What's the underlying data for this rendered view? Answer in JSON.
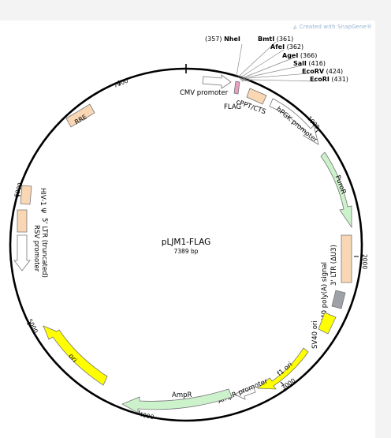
{
  "watermark": "Created with SnapGene®",
  "plasmid": {
    "name": "pLJM1-FLAG",
    "size_label": "7389 bp",
    "length": 7389
  },
  "ticks": [
    {
      "label": "1000",
      "pos": 1000
    },
    {
      "label": "2000",
      "pos": 2000
    },
    {
      "label": "3000",
      "pos": 3000
    },
    {
      "label": "4000",
      "pos": 4000
    },
    {
      "label": "5000",
      "pos": 5000
    },
    {
      "label": "6000",
      "pos": 6000
    },
    {
      "label": "7000",
      "pos": 7000
    }
  ],
  "sites": [
    {
      "name": "NheI",
      "pos": 357,
      "prefix": "(357) ",
      "suffix": ""
    },
    {
      "name": "BmtI",
      "pos": 361,
      "prefix": "",
      "suffix": " (361)"
    },
    {
      "name": "AfeI",
      "pos": 362,
      "prefix": "",
      "suffix": " (362)"
    },
    {
      "name": "AgeI",
      "pos": 366,
      "prefix": "",
      "suffix": " (366)"
    },
    {
      "name": "SalI",
      "pos": 416,
      "prefix": "",
      "suffix": " (416)"
    },
    {
      "name": "EcoRV",
      "pos": 424,
      "prefix": "",
      "suffix": " (424)"
    },
    {
      "name": "EcoRI",
      "pos": 431,
      "prefix": "",
      "suffix": " (431)"
    }
  ],
  "features": [
    {
      "id": "cmv",
      "label": "CMV promoter",
      "color": "#ffffff",
      "type": "arrow"
    },
    {
      "id": "flag",
      "label": "FLAG",
      "color": "#e7a0c0",
      "type": "block"
    },
    {
      "id": "cppt",
      "label": "cPPT/CTS",
      "color": "#f9d7b5",
      "type": "block"
    },
    {
      "id": "hpgk",
      "label": "hPGK promoter",
      "color": "#ffffff",
      "type": "arrow"
    },
    {
      "id": "puror",
      "label": "PuroR",
      "color": "#ccf2cc",
      "type": "arrow"
    },
    {
      "id": "ltr3",
      "label": "3' LTR (ΔU3)",
      "color": "#f9d7b5",
      "type": "block"
    },
    {
      "id": "sv40pa",
      "label": "SV40 poly(A) signal",
      "color": "#9ea1a6",
      "type": "block"
    },
    {
      "id": "sv40ori",
      "label": "SV40 ori",
      "color": "#ffff00",
      "type": "block"
    },
    {
      "id": "f1ori",
      "label": "f1 ori",
      "color": "#ffff00",
      "type": "arrow"
    },
    {
      "id": "ampprom",
      "label": "AmpR promoter",
      "color": "#ffffff",
      "type": "arrow"
    },
    {
      "id": "ampr",
      "label": "AmpR",
      "color": "#ccf2cc",
      "type": "arrow"
    },
    {
      "id": "ori",
      "label": "ori",
      "color": "#ffff00",
      "type": "arrow"
    },
    {
      "id": "rsv",
      "label": "RSV promoter",
      "color": "#ffffff",
      "type": "arrow"
    },
    {
      "id": "ltr5",
      "label": "5' LTR (truncated)",
      "color": "#f9d7b5",
      "type": "block"
    },
    {
      "id": "hiv",
      "label": "HIV-1 Ψ",
      "color": "#f9d7b5",
      "type": "block"
    },
    {
      "id": "rre",
      "label": "RRE",
      "color": "#f9d7b5",
      "type": "block"
    }
  ]
}
